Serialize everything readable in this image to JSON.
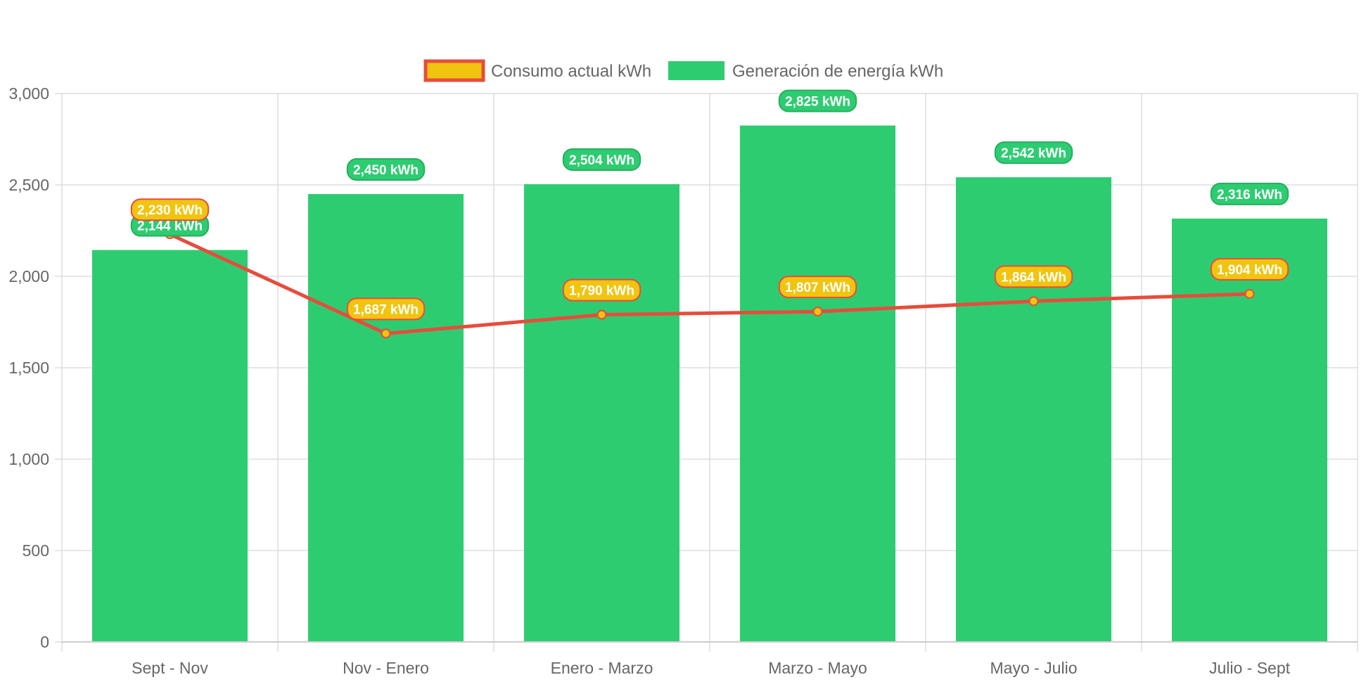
{
  "chart_data": {
    "type": "bar",
    "categories": [
      "Sept - Nov",
      "Nov - Enero",
      "Enero - Marzo",
      "Marzo - Mayo",
      "Mayo - Julio",
      "Julio - Sept"
    ],
    "series": [
      {
        "name": "Consumo actual kWh",
        "type": "line",
        "values": [
          2230,
          1687,
          1790,
          1807,
          1864,
          1904
        ],
        "labels": [
          "2,230 kWh",
          "1,687 kWh",
          "1,790 kWh",
          "1,807 kWh",
          "1,864 kWh",
          "1,904 kWh"
        ],
        "color": "#e74c3c",
        "fill": "#f1c40f"
      },
      {
        "name": "Generación de energía kWh",
        "type": "bar",
        "values": [
          2144,
          2450,
          2504,
          2825,
          2542,
          2316
        ],
        "labels": [
          "2,144 kWh",
          "2,450 kWh",
          "2,504 kWh",
          "2,825 kWh",
          "2,542 kWh",
          "2,316 kWh"
        ],
        "color": "#2ecc71",
        "border": "#27ae60"
      }
    ],
    "ylim": [
      0,
      3000
    ],
    "yticks": [
      0,
      500,
      1000,
      1500,
      2000,
      2500,
      3000
    ],
    "ytick_labels": [
      "0",
      "500",
      "1,000",
      "1,500",
      "2,000",
      "2,500",
      "3,000"
    ],
    "grid": true,
    "legend_position": "top-center",
    "title": "",
    "xlabel": "",
    "ylabel": ""
  }
}
